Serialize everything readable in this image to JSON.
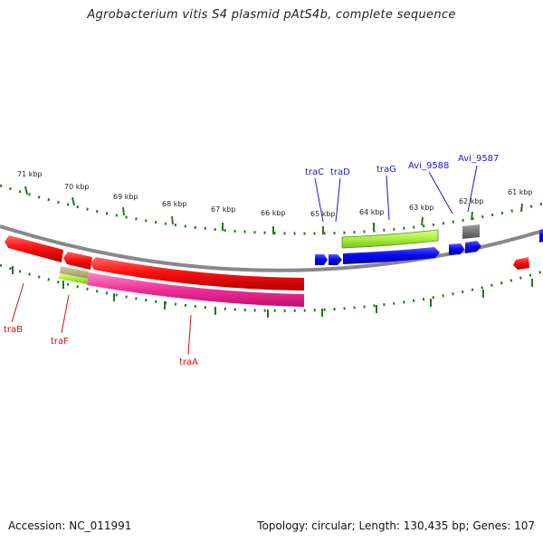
{
  "title": "Agrobacterium vitis S4 plasmid pAtS4b, complete sequence",
  "footer": {
    "accession": "Accession: NC_011991",
    "stats": "Topology: circular; Length: 130,435 bp; Genes: 107"
  },
  "ticks": [
    {
      "label": "71 kbp"
    },
    {
      "label": "70 kbp"
    },
    {
      "label": "69 kbp"
    },
    {
      "label": "68 kbp"
    },
    {
      "label": "67 kbp"
    },
    {
      "label": "66 kbp"
    },
    {
      "label": "65 kbp"
    },
    {
      "label": "64 kbp"
    },
    {
      "label": "63 kbp"
    },
    {
      "label": "62 kbp"
    },
    {
      "label": "61 kbp"
    }
  ],
  "genes": {
    "traC": "traC",
    "traD": "traD",
    "traG": "traG",
    "avi9588": "Avi_9588",
    "avi9587": "Avi_9587",
    "traB": "traB",
    "traF": "traF",
    "traA": "traA"
  },
  "colors": {
    "forward_label": "#1a1acc",
    "reverse_label": "#cc1111",
    "tick": "#1f7a1f",
    "backbone": "#888888"
  }
}
